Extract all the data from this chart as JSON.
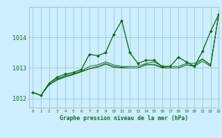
{
  "title": "Graphe pression niveau de la mer (hPa)",
  "bg_color": "#cceeff",
  "grid_color": "#99cccc",
  "line_color": "#1a6b1a",
  "marker_color": "#1a6b1a",
  "xlim": [
    -0.5,
    23
  ],
  "ylim": [
    1011.7,
    1015.0
  ],
  "yticks": [
    1012,
    1013,
    1014
  ],
  "xticks": [
    0,
    1,
    2,
    3,
    4,
    5,
    6,
    7,
    8,
    9,
    10,
    11,
    12,
    13,
    14,
    15,
    16,
    17,
    18,
    19,
    20,
    21,
    22,
    23
  ],
  "series_main": [
    1012.2,
    1012.1,
    1012.5,
    1012.7,
    1012.8,
    1012.85,
    1012.95,
    1013.45,
    1013.4,
    1013.5,
    1014.1,
    1014.55,
    1013.5,
    1013.15,
    1013.25,
    1013.25,
    1013.05,
    1013.05,
    1013.35,
    1013.2,
    1013.05,
    1013.55,
    1014.2,
    1014.75
  ],
  "series_others": [
    [
      1012.2,
      1012.1,
      1012.5,
      1012.65,
      1012.75,
      1012.8,
      1012.9,
      1013.05,
      1013.1,
      1013.2,
      1013.1,
      1013.05,
      1013.05,
      1013.05,
      1013.15,
      1013.2,
      1013.05,
      1013.05,
      1013.05,
      1013.15,
      1013.15,
      1013.3,
      1013.1,
      1014.75
    ],
    [
      1012.2,
      1012.1,
      1012.45,
      1012.6,
      1012.7,
      1012.78,
      1012.87,
      1012.97,
      1013.02,
      1013.12,
      1013.02,
      1013.0,
      1013.0,
      1013.0,
      1013.1,
      1013.1,
      1013.0,
      1013.0,
      1013.0,
      1013.1,
      1013.05,
      1013.22,
      1013.05,
      1014.75
    ],
    [
      1012.2,
      1012.1,
      1012.45,
      1012.62,
      1012.72,
      1012.8,
      1012.88,
      1012.98,
      1013.05,
      1013.15,
      1013.05,
      1013.02,
      1013.0,
      1013.0,
      1013.12,
      1013.12,
      1013.02,
      1013.0,
      1013.0,
      1013.1,
      1013.08,
      1013.28,
      1013.08,
      1014.75
    ]
  ]
}
